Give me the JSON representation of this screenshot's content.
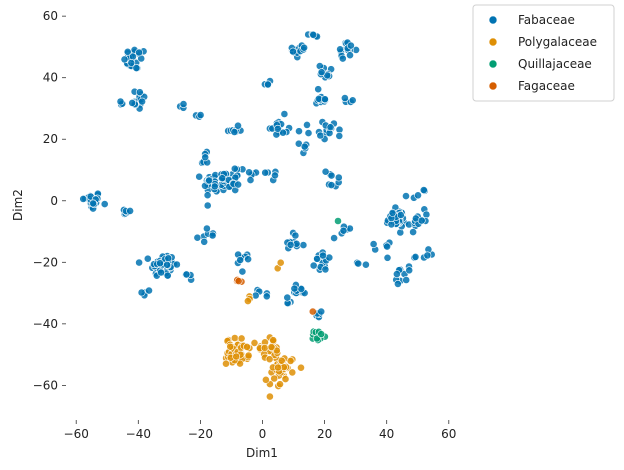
{
  "chart_data": {
    "type": "scatter",
    "xlabel": "Dim1",
    "ylabel": "Dim2",
    "xlim": [
      -62,
      62
    ],
    "ylim": [
      -68,
      62
    ],
    "xticks": [
      -60,
      -40,
      -20,
      0,
      20,
      40,
      60
    ],
    "yticks": [
      -60,
      -40,
      -20,
      0,
      20,
      40,
      60
    ],
    "grid": false,
    "legend_position": "outside-top-right",
    "series": [
      {
        "name": "Fabaceae",
        "color": "#0173b2",
        "clusters": [
          {
            "center": [
              -55,
              0
            ],
            "spread": [
              2.5,
              2.5
            ],
            "n": 25
          },
          {
            "center": [
              -44,
              -4
            ],
            "spread": [
              2,
              1.2
            ],
            "n": 6
          },
          {
            "center": [
              -41,
              46
            ],
            "spread": [
              3,
              3
            ],
            "n": 25
          },
          {
            "center": [
              -40,
              33
            ],
            "spread": [
              2.5,
              3
            ],
            "n": 15
          },
          {
            "center": [
              -46,
              32
            ],
            "spread": [
              1,
              1
            ],
            "n": 3
          },
          {
            "center": [
              -32,
              -21
            ],
            "spread": [
              3.2,
              3.2
            ],
            "n": 70
          },
          {
            "center": [
              -37,
              -30
            ],
            "spread": [
              1.5,
              1
            ],
            "n": 4
          },
          {
            "center": [
              -26,
              31
            ],
            "spread": [
              1.5,
              1
            ],
            "n": 3
          },
          {
            "center": [
              -20,
              28
            ],
            "spread": [
              1.5,
              1
            ],
            "n": 3
          },
          {
            "center": [
              -13,
              6
            ],
            "spread": [
              5,
              3
            ],
            "n": 65
          },
          {
            "center": [
              -19,
              13
            ],
            "spread": [
              2,
              2
            ],
            "n": 6
          },
          {
            "center": [
              -9,
              23
            ],
            "spread": [
              3,
              1
            ],
            "n": 8
          },
          {
            "center": [
              -18,
              -11
            ],
            "spread": [
              2,
              2
            ],
            "n": 8
          },
          {
            "center": [
              -5,
              9
            ],
            "spread": [
              3,
              2
            ],
            "n": 8
          },
          {
            "center": [
              2,
              8
            ],
            "spread": [
              2,
              2
            ],
            "n": 5
          },
          {
            "center": [
              5,
              24
            ],
            "spread": [
              2.5,
              3
            ],
            "n": 15
          },
          {
            "center": [
              1,
              38
            ],
            "spread": [
              1.5,
              1.5
            ],
            "n": 4
          },
          {
            "center": [
              12,
              49
            ],
            "spread": [
              2,
              2.5
            ],
            "n": 15
          },
          {
            "center": [
              17,
              54
            ],
            "spread": [
              1.5,
              1
            ],
            "n": 5
          },
          {
            "center": [
              27,
              49
            ],
            "spread": [
              2.5,
              2
            ],
            "n": 15
          },
          {
            "center": [
              20,
              42
            ],
            "spread": [
              3,
              2
            ],
            "n": 10
          },
          {
            "center": [
              19,
              33
            ],
            "spread": [
              2,
              3
            ],
            "n": 10
          },
          {
            "center": [
              22,
              23
            ],
            "spread": [
              3,
              2.5
            ],
            "n": 15
          },
          {
            "center": [
              28,
              33
            ],
            "spread": [
              1.5,
              1
            ],
            "n": 4
          },
          {
            "center": [
              12,
              20
            ],
            "spread": [
              2,
              4
            ],
            "n": 8
          },
          {
            "center": [
              23,
              6
            ],
            "spread": [
              3,
              4
            ],
            "n": 8
          },
          {
            "center": [
              26,
              -10
            ],
            "spread": [
              3,
              2
            ],
            "n": 6
          },
          {
            "center": [
              43,
              -6
            ],
            "spread": [
              2.5,
              2.5
            ],
            "n": 40
          },
          {
            "center": [
              50,
              -6
            ],
            "spread": [
              3,
              3
            ],
            "n": 12
          },
          {
            "center": [
              50,
              2
            ],
            "spread": [
              3,
              2
            ],
            "n": 5
          },
          {
            "center": [
              53,
              -18
            ],
            "spread": [
              3,
              2
            ],
            "n": 6
          },
          {
            "center": [
              45,
              -24
            ],
            "spread": [
              2.5,
              2
            ],
            "n": 10
          },
          {
            "center": [
              37,
              -16
            ],
            "spread": [
              3,
              2
            ],
            "n": 6
          },
          {
            "center": [
              20,
              -20
            ],
            "spread": [
              2.5,
              2.5
            ],
            "n": 15
          },
          {
            "center": [
              12,
              -29
            ],
            "spread": [
              3,
              1.5
            ],
            "n": 10
          },
          {
            "center": [
              18,
              -37
            ],
            "spread": [
              2,
              1.5
            ],
            "n": 6
          },
          {
            "center": [
              10,
              -14
            ],
            "spread": [
              3,
              3
            ],
            "n": 10
          },
          {
            "center": [
              -6,
              -20
            ],
            "spread": [
              3,
              3
            ],
            "n": 8
          },
          {
            "center": [
              0,
              -30
            ],
            "spread": [
              2.5,
              2
            ],
            "n": 5
          },
          {
            "center": [
              8,
              -33
            ],
            "spread": [
              2,
              2
            ],
            "n": 4
          },
          {
            "center": [
              31,
              -21
            ],
            "spread": [
              2,
              2
            ],
            "n": 3
          },
          {
            "center": [
              -23,
              -24
            ],
            "spread": [
              2,
              1
            ],
            "n": 4
          }
        ]
      },
      {
        "name": "Polygalaceae",
        "color": "#de8f05",
        "clusters": [
          {
            "center": [
              -8,
              -49
            ],
            "spread": [
              3,
              3.5
            ],
            "n": 55
          },
          {
            "center": [
              2,
              -48
            ],
            "spread": [
              3,
              3
            ],
            "n": 25
          },
          {
            "center": [
              7,
              -54
            ],
            "spread": [
              3,
              3
            ],
            "n": 30
          },
          {
            "center": [
              3,
              -59
            ],
            "spread": [
              2,
              2
            ],
            "n": 6
          },
          {
            "center": [
              -4,
              -32
            ],
            "spread": [
              1,
              1
            ],
            "n": 3
          },
          {
            "center": [
              5,
              -21
            ],
            "spread": [
              1,
              1
            ],
            "n": 2
          }
        ]
      },
      {
        "name": "Quillajaceae",
        "color": "#029e73",
        "clusters": [
          {
            "center": [
              18,
              -44
            ],
            "spread": [
              1.2,
              1.5
            ],
            "n": 18
          },
          {
            "center": [
              24,
              -6
            ],
            "spread": [
              0.5,
              0.5
            ],
            "n": 1
          }
        ]
      },
      {
        "name": "Fagaceae",
        "color": "#d55e00",
        "clusters": [
          {
            "center": [
              -7,
              -26
            ],
            "spread": [
              1,
              0.3
            ],
            "n": 4
          },
          {
            "center": [
              16,
              -36
            ],
            "spread": [
              0.5,
              0.5
            ],
            "n": 1
          }
        ]
      }
    ]
  }
}
